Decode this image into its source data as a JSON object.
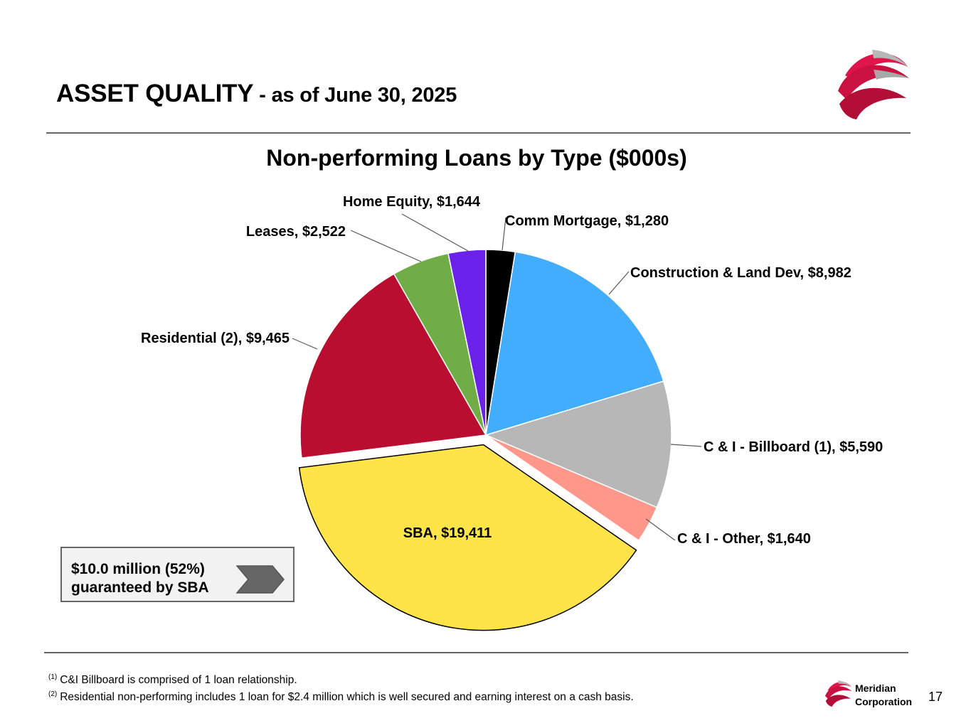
{
  "header": {
    "title_main": "ASSET QUALITY",
    "title_sub": " - as of June 30, 2025"
  },
  "chart_data": {
    "type": "pie",
    "title": "Non-performing Loans by Type ($000s)",
    "slices": [
      {
        "label": "Comm Mortgage, $1,280",
        "name": "Comm Mortgage",
        "value": 1280,
        "color": "#000000"
      },
      {
        "label": "Construction & Land Dev, $8,982",
        "name": "Construction & Land Dev",
        "value": 8982,
        "color": "#42adfc"
      },
      {
        "label": "C & I - Billboard (1), $5,590",
        "name": "C & I - Billboard (1)",
        "value": 5590,
        "color": "#b7b7b7"
      },
      {
        "label": "C & I - Other, $1,640",
        "name": "C & I - Other",
        "value": 1640,
        "color": "#ff978b"
      },
      {
        "label": "SBA, $19,411",
        "name": "SBA",
        "value": 19411,
        "color": "#fee449",
        "exploded": true
      },
      {
        "label": "Residential (2), $9,465",
        "name": "Residential (2)",
        "value": 9465,
        "color": "#b90e2f"
      },
      {
        "label": "Leases, $2,522",
        "name": "Leases",
        "value": 2522,
        "color": "#70ad47"
      },
      {
        "label": "Home Equity, $1,644",
        "name": "Home Equity",
        "value": 1644,
        "color": "#6a22ea"
      }
    ]
  },
  "callout": {
    "line1": "$10.0 million (52%)",
    "line2": "guaranteed by SBA"
  },
  "footnotes": [
    {
      "marker": "(1)",
      "text": "C&I Billboard is comprised of 1 loan relationship."
    },
    {
      "marker": "(2)",
      "text": "Residential non-performing includes 1 loan for $2.4 million which is well secured and earning interest on a cash basis."
    }
  ],
  "footer": {
    "brand_line1": "Meridian",
    "brand_line2": "Corporation",
    "page_number": "17"
  },
  "colors": {
    "brand": "#e0164a",
    "rule": "#666666"
  }
}
